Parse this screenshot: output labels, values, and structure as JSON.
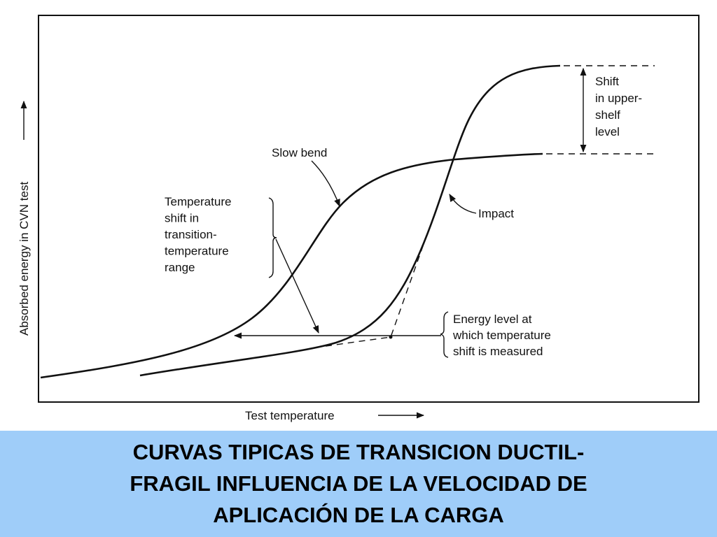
{
  "diagram": {
    "y_axis_label": "Absorbed energy in CVN test",
    "x_axis_label": "Test temperature",
    "slow_bend_label": "Slow bend",
    "impact_label": "Impact",
    "upper_shelf_note": [
      "Shift",
      "in upper-",
      "shelf",
      "level"
    ],
    "transition_note": [
      "Temperature",
      "shift in",
      "transition-",
      "temperature",
      "range"
    ],
    "energy_note": [
      "Energy level at",
      "which temperature",
      "shift is measured"
    ]
  },
  "caption": {
    "lines": [
      "CURVAS TIPICAS DE TRANSICION DUCTIL-",
      "FRAGIL INFLUENCIA DE LA VELOCIDAD DE",
      "APLICACIÓN DE LA CARGA"
    ]
  }
}
